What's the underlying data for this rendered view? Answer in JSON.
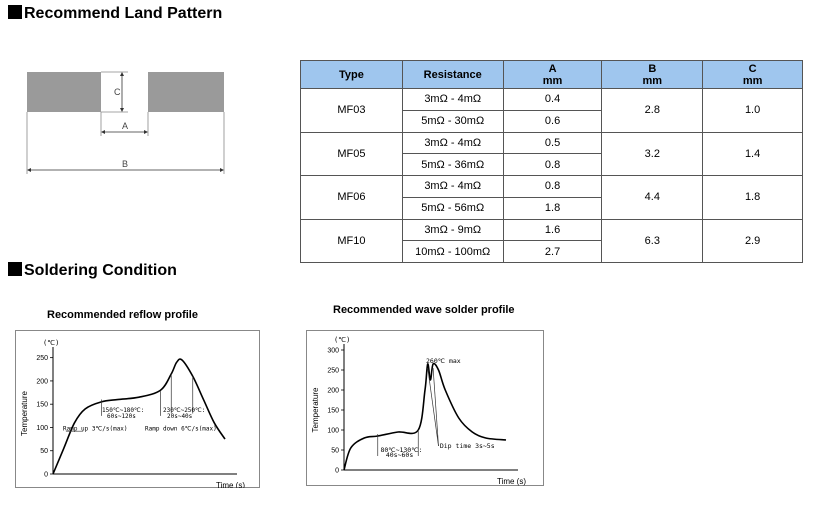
{
  "sections": {
    "land_pattern": "Recommend Land Pattern",
    "soldering": "Soldering Condition"
  },
  "diagram": {
    "label_a": "A",
    "label_b": "B",
    "label_c": "C"
  },
  "table": {
    "headers": {
      "type": "Type",
      "resistance": "Resistance",
      "a": "A",
      "b": "B",
      "c": "C",
      "unit": "mm"
    },
    "rows": [
      {
        "type": "MF03",
        "r1": "3mΩ - 4mΩ",
        "a1": "0.4",
        "r2": "5mΩ - 30mΩ",
        "a2": "0.6",
        "b": "2.8",
        "c": "1.0"
      },
      {
        "type": "MF05",
        "r1": "3mΩ - 4mΩ",
        "a1": "0.5",
        "r2": "5mΩ - 36mΩ",
        "a2": "0.8",
        "b": "3.2",
        "c": "1.4"
      },
      {
        "type": "MF06",
        "r1": "3mΩ - 4mΩ",
        "a1": "0.8",
        "r2": "5mΩ - 56mΩ",
        "a2": "1.8",
        "b": "4.4",
        "c": "1.8"
      },
      {
        "type": "MF10",
        "r1": "3mΩ - 9mΩ",
        "a1": "1.6",
        "r2": "10mΩ - 100mΩ",
        "a2": "2.7",
        "b": "6.3",
        "c": "2.9"
      }
    ]
  },
  "chart_data": [
    {
      "type": "line",
      "title": "Recommended reflow profile",
      "unit_label": "(℃)",
      "ylabel": "Temperature",
      "xlabel": "Time (s)",
      "ylim": [
        0,
        260
      ],
      "yticks": [
        "0",
        "50",
        "100",
        "150",
        "200",
        "250"
      ],
      "x": [
        0,
        10,
        20,
        30,
        45,
        60,
        80,
        100,
        110,
        115,
        120,
        130,
        140,
        150,
        160
      ],
      "y": [
        0,
        55,
        110,
        140,
        155,
        160,
        165,
        180,
        215,
        240,
        245,
        210,
        160,
        110,
        75
      ],
      "annotations": {
        "ramp_up": "Ramp up 3℃/s(max)",
        "ramp_down": "Ramp down 6℃/s(max)",
        "preheat_temp": "150℃~180℃:",
        "preheat_time": "60s~120s",
        "peak_temp": "230℃~250℃:",
        "peak_time": "20s~40s"
      }
    },
    {
      "type": "line",
      "title": "Recommended wave solder profile",
      "unit_label": "(℃)",
      "ylabel": "Temperature",
      "xlabel": "Time (s)",
      "ylim": [
        0,
        300
      ],
      "yticks": [
        "0",
        "50",
        "100",
        "150",
        "200",
        "250",
        "300"
      ],
      "x": [
        0,
        5,
        15,
        25,
        40,
        55,
        60,
        62,
        64,
        66,
        70,
        75,
        85,
        95,
        105,
        120
      ],
      "y": [
        0,
        55,
        80,
        85,
        95,
        100,
        200,
        265,
        225,
        265,
        250,
        200,
        130,
        95,
        80,
        75
      ],
      "annotations": {
        "peak": "260℃ max",
        "dip_time": "Dip time 3s~5s",
        "preheat_temp": "80℃~130℃:",
        "preheat_time": "40s~60s"
      }
    }
  ]
}
